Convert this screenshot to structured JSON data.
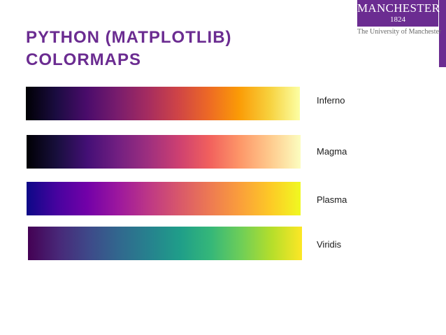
{
  "logo": {
    "name": "MANCHESTER",
    "year": "1824",
    "subtitle": "The University of Manchester",
    "color": "#6b2c91"
  },
  "title": "PYTHON (MATPLOTLIB)\nCOLORMAPS",
  "colormaps": [
    {
      "label": "Inferno",
      "colors": [
        "#000004",
        "#1b0c41",
        "#4a0c6b",
        "#781c6d",
        "#a52c60",
        "#cf4446",
        "#ed6925",
        "#fb9b06",
        "#f7d13d",
        "#fcffa4"
      ]
    },
    {
      "label": "Magma",
      "colors": [
        "#000004",
        "#180f3d",
        "#440f76",
        "#721f81",
        "#9e2f7f",
        "#cd4071",
        "#f1605d",
        "#fd9668",
        "#feca8d",
        "#fcfdbf"
      ]
    },
    {
      "label": "Plasma",
      "colors": [
        "#0d0887",
        "#47039f",
        "#7301a8",
        "#9c179e",
        "#bd3786",
        "#d8576b",
        "#ed7953",
        "#fa9e3b",
        "#fdc926",
        "#f0f921"
      ]
    },
    {
      "label": "Viridis",
      "colors": [
        "#440154",
        "#482878",
        "#3e4989",
        "#31688e",
        "#26828e",
        "#1f9e89",
        "#35b779",
        "#6ece58",
        "#b5de2b",
        "#fde725"
      ]
    }
  ]
}
